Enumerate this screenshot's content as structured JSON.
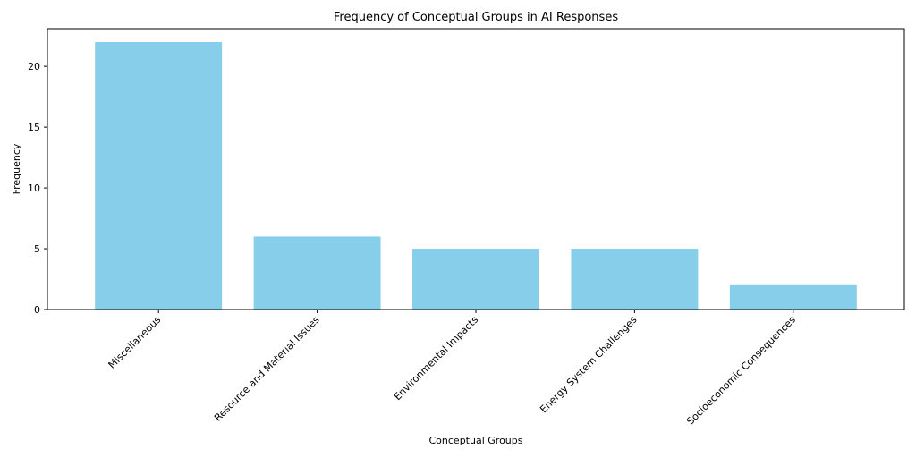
{
  "chart_data": {
    "type": "bar",
    "title": "Frequency of Conceptual Groups in AI Responses",
    "xlabel": "Conceptual Groups",
    "ylabel": "Frequency",
    "categories": [
      "Miscellaneous",
      "Resource and Material Issues",
      "Environmental Impacts",
      "Energy System Challenges",
      "Socioeconomic Consequences"
    ],
    "values": [
      22,
      6,
      5,
      5,
      2
    ],
    "ylim": [
      0,
      23.1
    ],
    "yticks": [
      0,
      5,
      10,
      15,
      20
    ],
    "bar_color": "#87CEEB",
    "grid": false,
    "legend": "none"
  }
}
